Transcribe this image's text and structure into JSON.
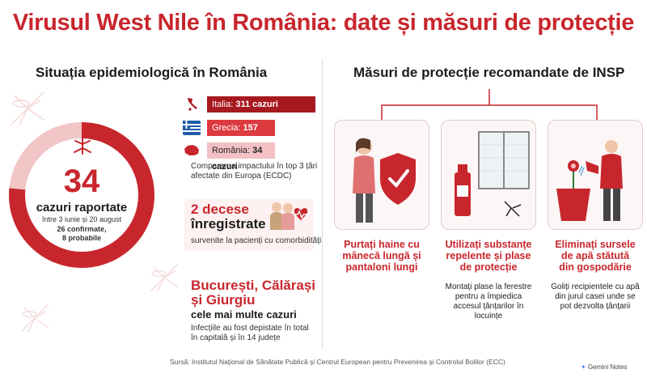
{
  "title": "Virusul West Nile în România: date și măsuri de protecție",
  "left": {
    "section_title": "Situația epidemiologică în România",
    "donut": {
      "value": "34",
      "label": "cazuri raportate",
      "period": "între 3 iunie și 20 august",
      "confirmed": "26 confirmate,",
      "probable": "8 probabile",
      "confirmed_count": 26,
      "probable_count": 8,
      "colors": {
        "confirmed": "#c8262d",
        "probable": "#f2c5c7"
      }
    },
    "countries": [
      {
        "country": "Italia:",
        "value": "311 cazuri",
        "cases": 311,
        "color": "#a8181f",
        "flag": "italy-map-icon"
      },
      {
        "country": "Grecia:",
        "value": "157 cazuri",
        "cases": 157,
        "color": "#dc3a3f",
        "flag": "greece-flag-icon"
      },
      {
        "country": "România:",
        "value": "34 cazuri",
        "cases": 34,
        "color": "#f3c1c3",
        "flag": "romania-map-icon"
      }
    ],
    "comparison_note_1": "Compararea impactului în top 3 țări",
    "comparison_note_2": "afectate din Europa (ECDC)",
    "deaths": {
      "head_1": "2 decese",
      "head_2": "înregistrate",
      "note": "survenite la pacienți cu comorbidități"
    },
    "regions": {
      "head_1": "București, Călărași",
      "head_2": "și Giurgiu",
      "sub": "cele mai multe cazuri",
      "note_1": "Infecțiile au fost depistate în total",
      "note_2": "în capitală și în 14 județe"
    }
  },
  "right": {
    "section_title": "Măsuri de protecție recomandate de INSP",
    "cards": [
      {
        "title_1": "Purtați haine cu",
        "title_2": "mânecă lungă și",
        "title_3": "pantaloni lungi",
        "desc_1": "",
        "desc_2": "",
        "desc_3": "",
        "desc_4": "",
        "icon": "shield-person-icon"
      },
      {
        "title_1": "Utilizați substanțe",
        "title_2": "repelente și plase",
        "title_3": "de protecție",
        "desc_1": "Montați plase la ferestre",
        "desc_2": "pentru a împiedica",
        "desc_3": "accesul țânțarilor în",
        "desc_4": "locuințe",
        "icon": "repellent-window-icon"
      },
      {
        "title_1": "Eliminați sursele",
        "title_2": "de apă stătută",
        "title_3": "din gospodărie",
        "desc_1": "Goliți recipientele cu apă",
        "desc_2": "din jurul casei unde se",
        "desc_3": "pot dezvolta țânțarii",
        "desc_4": "",
        "icon": "watering-plant-icon"
      }
    ]
  },
  "source": "Sursă: Institutul Național de Sănătate Publică și Centrul European pentru Prevenirea și Controlul Bolilor (ECC)",
  "brand": "Gemini Notes",
  "colors": {
    "accent": "#c8262d",
    "dark_red": "#a8181f",
    "pink": "#f3c1c3"
  }
}
